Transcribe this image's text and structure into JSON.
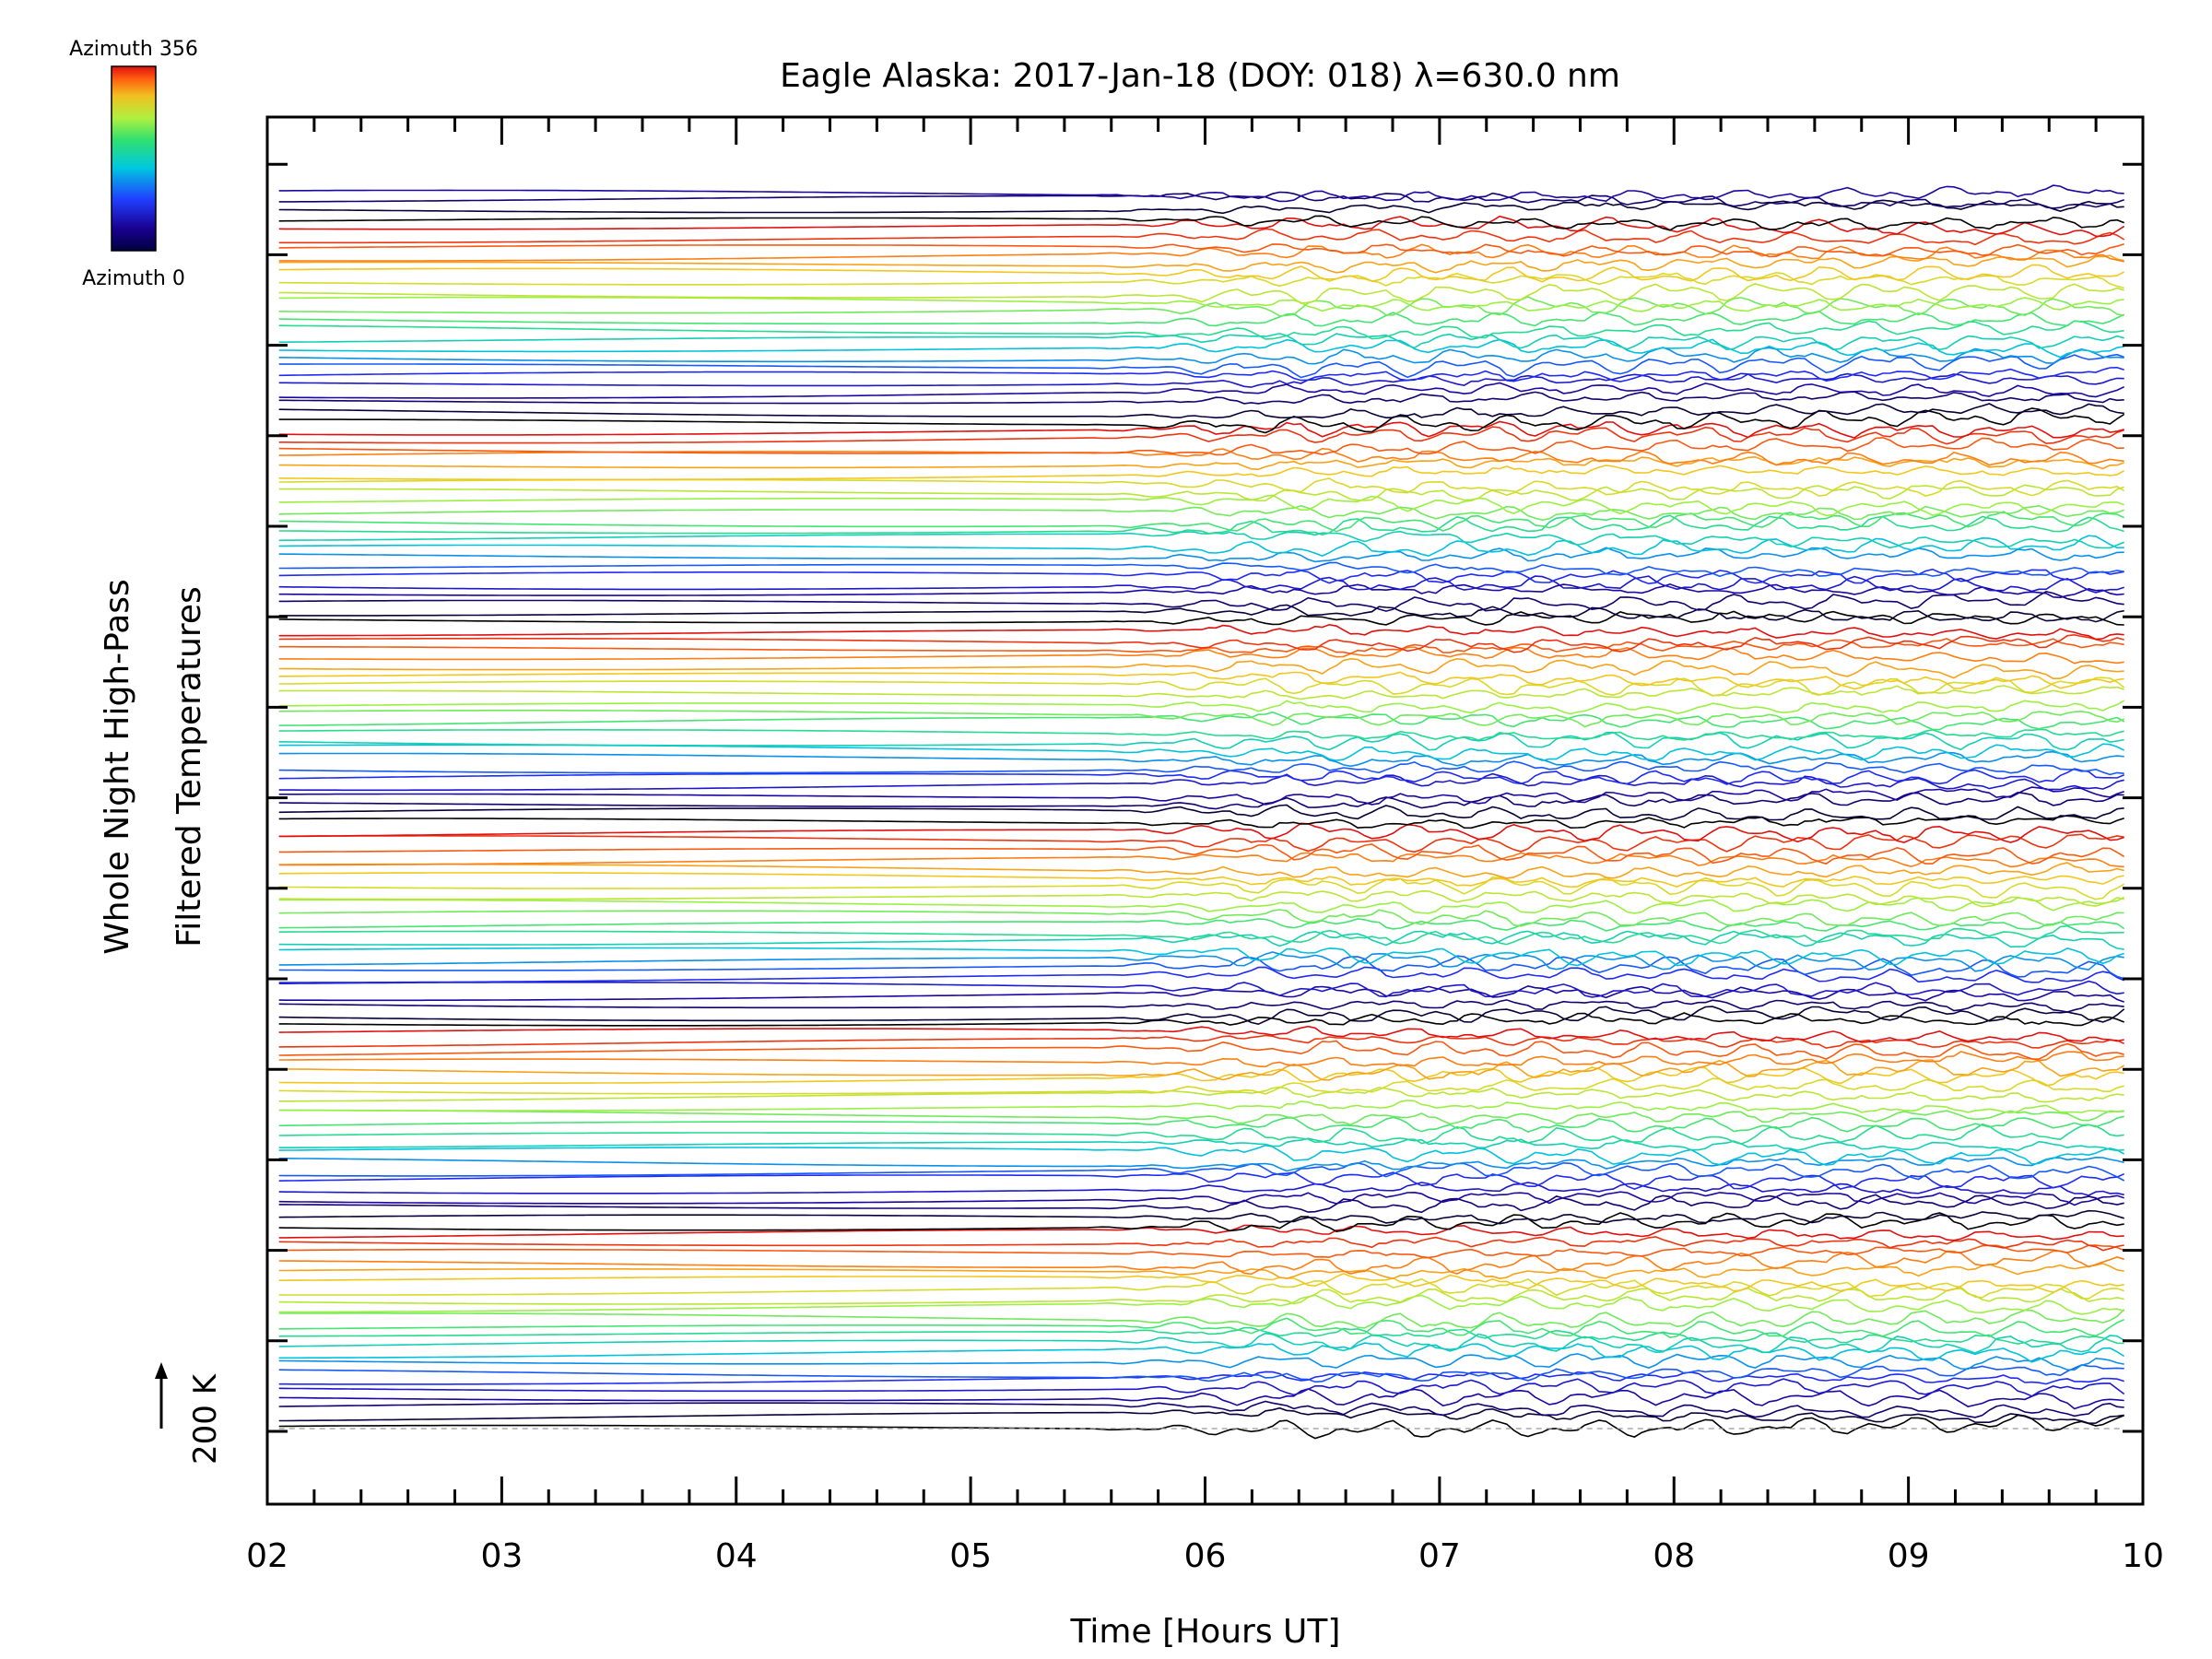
{
  "chart_data": {
    "type": "line",
    "title": "Eagle Alaska: 2017-Jan-18 (DOY: 018) λ=630.0 nm",
    "xlabel": "Time [Hours UT]",
    "ylabel_line1": "Whole Night High-Pass",
    "ylabel_line2": "Filtered Temperatures",
    "scale_label": "200 K",
    "xlim": [
      2,
      10
    ],
    "x_ticks": [
      "02",
      "03",
      "04",
      "05",
      "06",
      "07",
      "08",
      "09",
      "10"
    ],
    "x_tick_values": [
      2,
      3,
      4,
      5,
      6,
      7,
      8,
      9,
      10
    ],
    "colorbar": {
      "top_label": "Azimuth 356",
      "bottom_label": "Azimuth 0",
      "colors": [
        "#000000",
        "#1a0090",
        "#2030ff",
        "#00c0e0",
        "#30e080",
        "#a0f040",
        "#f0d020",
        "#ff7010",
        "#e01010"
      ]
    },
    "series_count": 136,
    "series_group_size": 22,
    "x_start": 2.05,
    "x_end": 9.92,
    "wave_onset_hour": 5.5,
    "grid": false,
    "legend_placement": "top-left colorbar"
  }
}
